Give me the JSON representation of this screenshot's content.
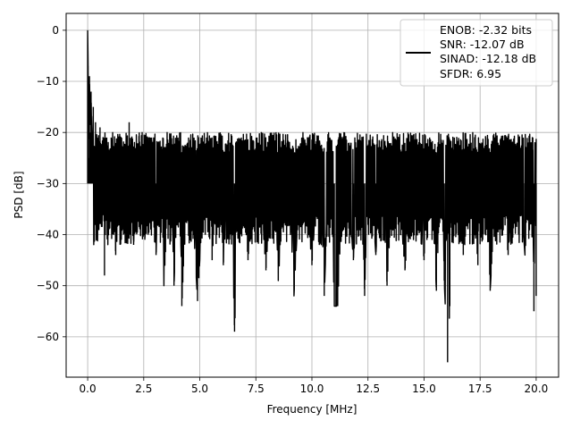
{
  "chart_data": {
    "type": "line",
    "title": "",
    "xlabel": "Frequency [MHz]",
    "ylabel": "PSD [dB]",
    "xlim": [
      -0.96,
      21.0
    ],
    "ylim": [
      -67.9,
      3.3
    ],
    "xticks": [
      0.0,
      2.5,
      5.0,
      7.5,
      10.0,
      12.5,
      15.0,
      17.5,
      20.0
    ],
    "xtick_labels": [
      "0.0",
      "2.5",
      "5.0",
      "7.5",
      "10.0",
      "12.5",
      "15.0",
      "17.5",
      "20.0"
    ],
    "yticks": [
      0,
      -10,
      -20,
      -30,
      -40,
      -50,
      -60
    ],
    "ytick_labels": [
      "0",
      "−10",
      "−20",
      "−30",
      "−40",
      "−50",
      "−60"
    ],
    "grid": true,
    "legend": {
      "placement": "upper right",
      "lines": [
        "ENOB: -2.32 bits",
        "SNR: -12.07 dB",
        "SINAD: -12.18 dB",
        "SFDR: 6.95"
      ]
    },
    "series": [
      {
        "color": "#000000",
        "description": "noisy power spectral density, 0 to 20 MHz",
        "points": [
          [
            0.0,
            0.0
          ],
          [
            0.02,
            -7.0
          ],
          [
            0.05,
            -25.0
          ],
          [
            0.08,
            -9.0
          ],
          [
            0.12,
            -20.0
          ],
          [
            0.15,
            -12.0
          ],
          [
            0.2,
            -28.0
          ],
          [
            0.25,
            -15.0
          ],
          [
            0.3,
            -31.0
          ],
          [
            0.35,
            -18.0
          ],
          [
            0.45,
            -33.0
          ],
          [
            0.55,
            -19.0
          ],
          [
            0.65,
            -35.0
          ],
          [
            0.7,
            -22.0
          ],
          [
            0.75,
            -48.0
          ],
          [
            0.85,
            -21.0
          ],
          [
            0.95,
            -39.0
          ],
          [
            1.05,
            -21.0
          ],
          [
            1.25,
            -44.0
          ],
          [
            1.45,
            -22.0
          ],
          [
            1.6,
            -40.0
          ],
          [
            1.85,
            -18.0
          ],
          [
            2.05,
            -42.0
          ],
          [
            2.3,
            -20.0
          ],
          [
            2.55,
            -41.0
          ],
          [
            2.85,
            -21.0
          ],
          [
            3.05,
            -44.0
          ],
          [
            3.35,
            -21.0
          ],
          [
            3.4,
            -50.0
          ],
          [
            3.7,
            -22.0
          ],
          [
            3.85,
            -50.0
          ],
          [
            4.1,
            -20.0
          ],
          [
            4.2,
            -54.0
          ],
          [
            4.5,
            -21.0
          ],
          [
            4.9,
            -53.0
          ],
          [
            5.3,
            -21.0
          ],
          [
            5.55,
            -45.0
          ],
          [
            5.85,
            -21.0
          ],
          [
            6.05,
            -46.0
          ],
          [
            6.35,
            -22.0
          ],
          [
            6.55,
            -59.0
          ],
          [
            6.85,
            -21.0
          ],
          [
            7.15,
            -45.0
          ],
          [
            7.55,
            -21.0
          ],
          [
            7.95,
            -47.0
          ],
          [
            8.3,
            -21.0
          ],
          [
            8.5,
            -49.0
          ],
          [
            8.9,
            -22.0
          ],
          [
            9.2,
            -52.0
          ],
          [
            9.55,
            -21.0
          ],
          [
            10.0,
            -46.0
          ],
          [
            10.35,
            -22.0
          ],
          [
            10.55,
            -52.0
          ],
          [
            10.8,
            -21.0
          ],
          [
            11.0,
            -54.0
          ],
          [
            11.15,
            -54.0
          ],
          [
            11.45,
            -21.0
          ],
          [
            11.85,
            -45.0
          ],
          [
            12.2,
            -22.0
          ],
          [
            12.35,
            -52.0
          ],
          [
            12.55,
            -22.0
          ],
          [
            12.85,
            -44.0
          ],
          [
            13.1,
            -23.0
          ],
          [
            13.35,
            -50.0
          ],
          [
            13.7,
            -22.0
          ],
          [
            14.15,
            -47.0
          ],
          [
            14.6,
            -22.0
          ],
          [
            15.0,
            -45.0
          ],
          [
            15.25,
            -21.0
          ],
          [
            15.55,
            -51.0
          ],
          [
            15.8,
            -22.0
          ],
          [
            15.9,
            -49.0
          ],
          [
            16.05,
            -65.0
          ],
          [
            16.15,
            -54.0
          ],
          [
            16.35,
            -21.0
          ],
          [
            16.75,
            -44.0
          ],
          [
            17.1,
            -22.0
          ],
          [
            17.4,
            -46.0
          ],
          [
            17.75,
            -21.0
          ],
          [
            17.95,
            -51.0
          ],
          [
            18.3,
            -22.0
          ],
          [
            18.75,
            -44.0
          ],
          [
            19.15,
            -22.0
          ],
          [
            19.5,
            -44.0
          ],
          [
            19.85,
            -21.0
          ],
          [
            19.9,
            -55.0
          ],
          [
            19.95,
            -22.0
          ],
          [
            20.0,
            -52.0
          ]
        ]
      }
    ]
  }
}
